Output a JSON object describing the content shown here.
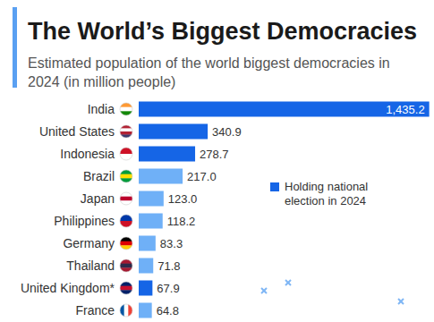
{
  "chart_data": {
    "type": "bar",
    "orientation": "horizontal",
    "title": "The World’s Biggest Democracies",
    "subtitle": "Estimated population of the world biggest democracies in 2024 (in million people)",
    "categories": [
      "India",
      "United States",
      "Indonesia",
      "Brazil",
      "Japan",
      "Philippines",
      "Germany",
      "Thailand",
      "United Kingdom*",
      "France"
    ],
    "series": [
      {
        "name": "Holding national election in 2024",
        "color": "#1565e6",
        "values": [
          1435.2,
          340.9,
          278.7,
          217.0,
          123.0,
          118.2,
          83.3,
          71.8,
          67.9,
          64.8
        ],
        "value_labels": [
          "1,435.2",
          "340.9",
          "278.7",
          "217.0",
          "123.0",
          "118.2",
          "83.3",
          "71.8",
          "67.9",
          "64.8"
        ],
        "colors": [
          "#1565e6",
          "#1565e6",
          "#1565e6",
          "#6fb0f7",
          "#6fb0f7",
          "#6fb0f7",
          "#6fb0f7",
          "#6fb0f7",
          "#1565e6",
          "#6fb0f7"
        ]
      }
    ],
    "xlim": [
      0,
      1450
    ],
    "tick_labels": false,
    "grid": false,
    "data_labels": true,
    "legend": "right"
  }
}
